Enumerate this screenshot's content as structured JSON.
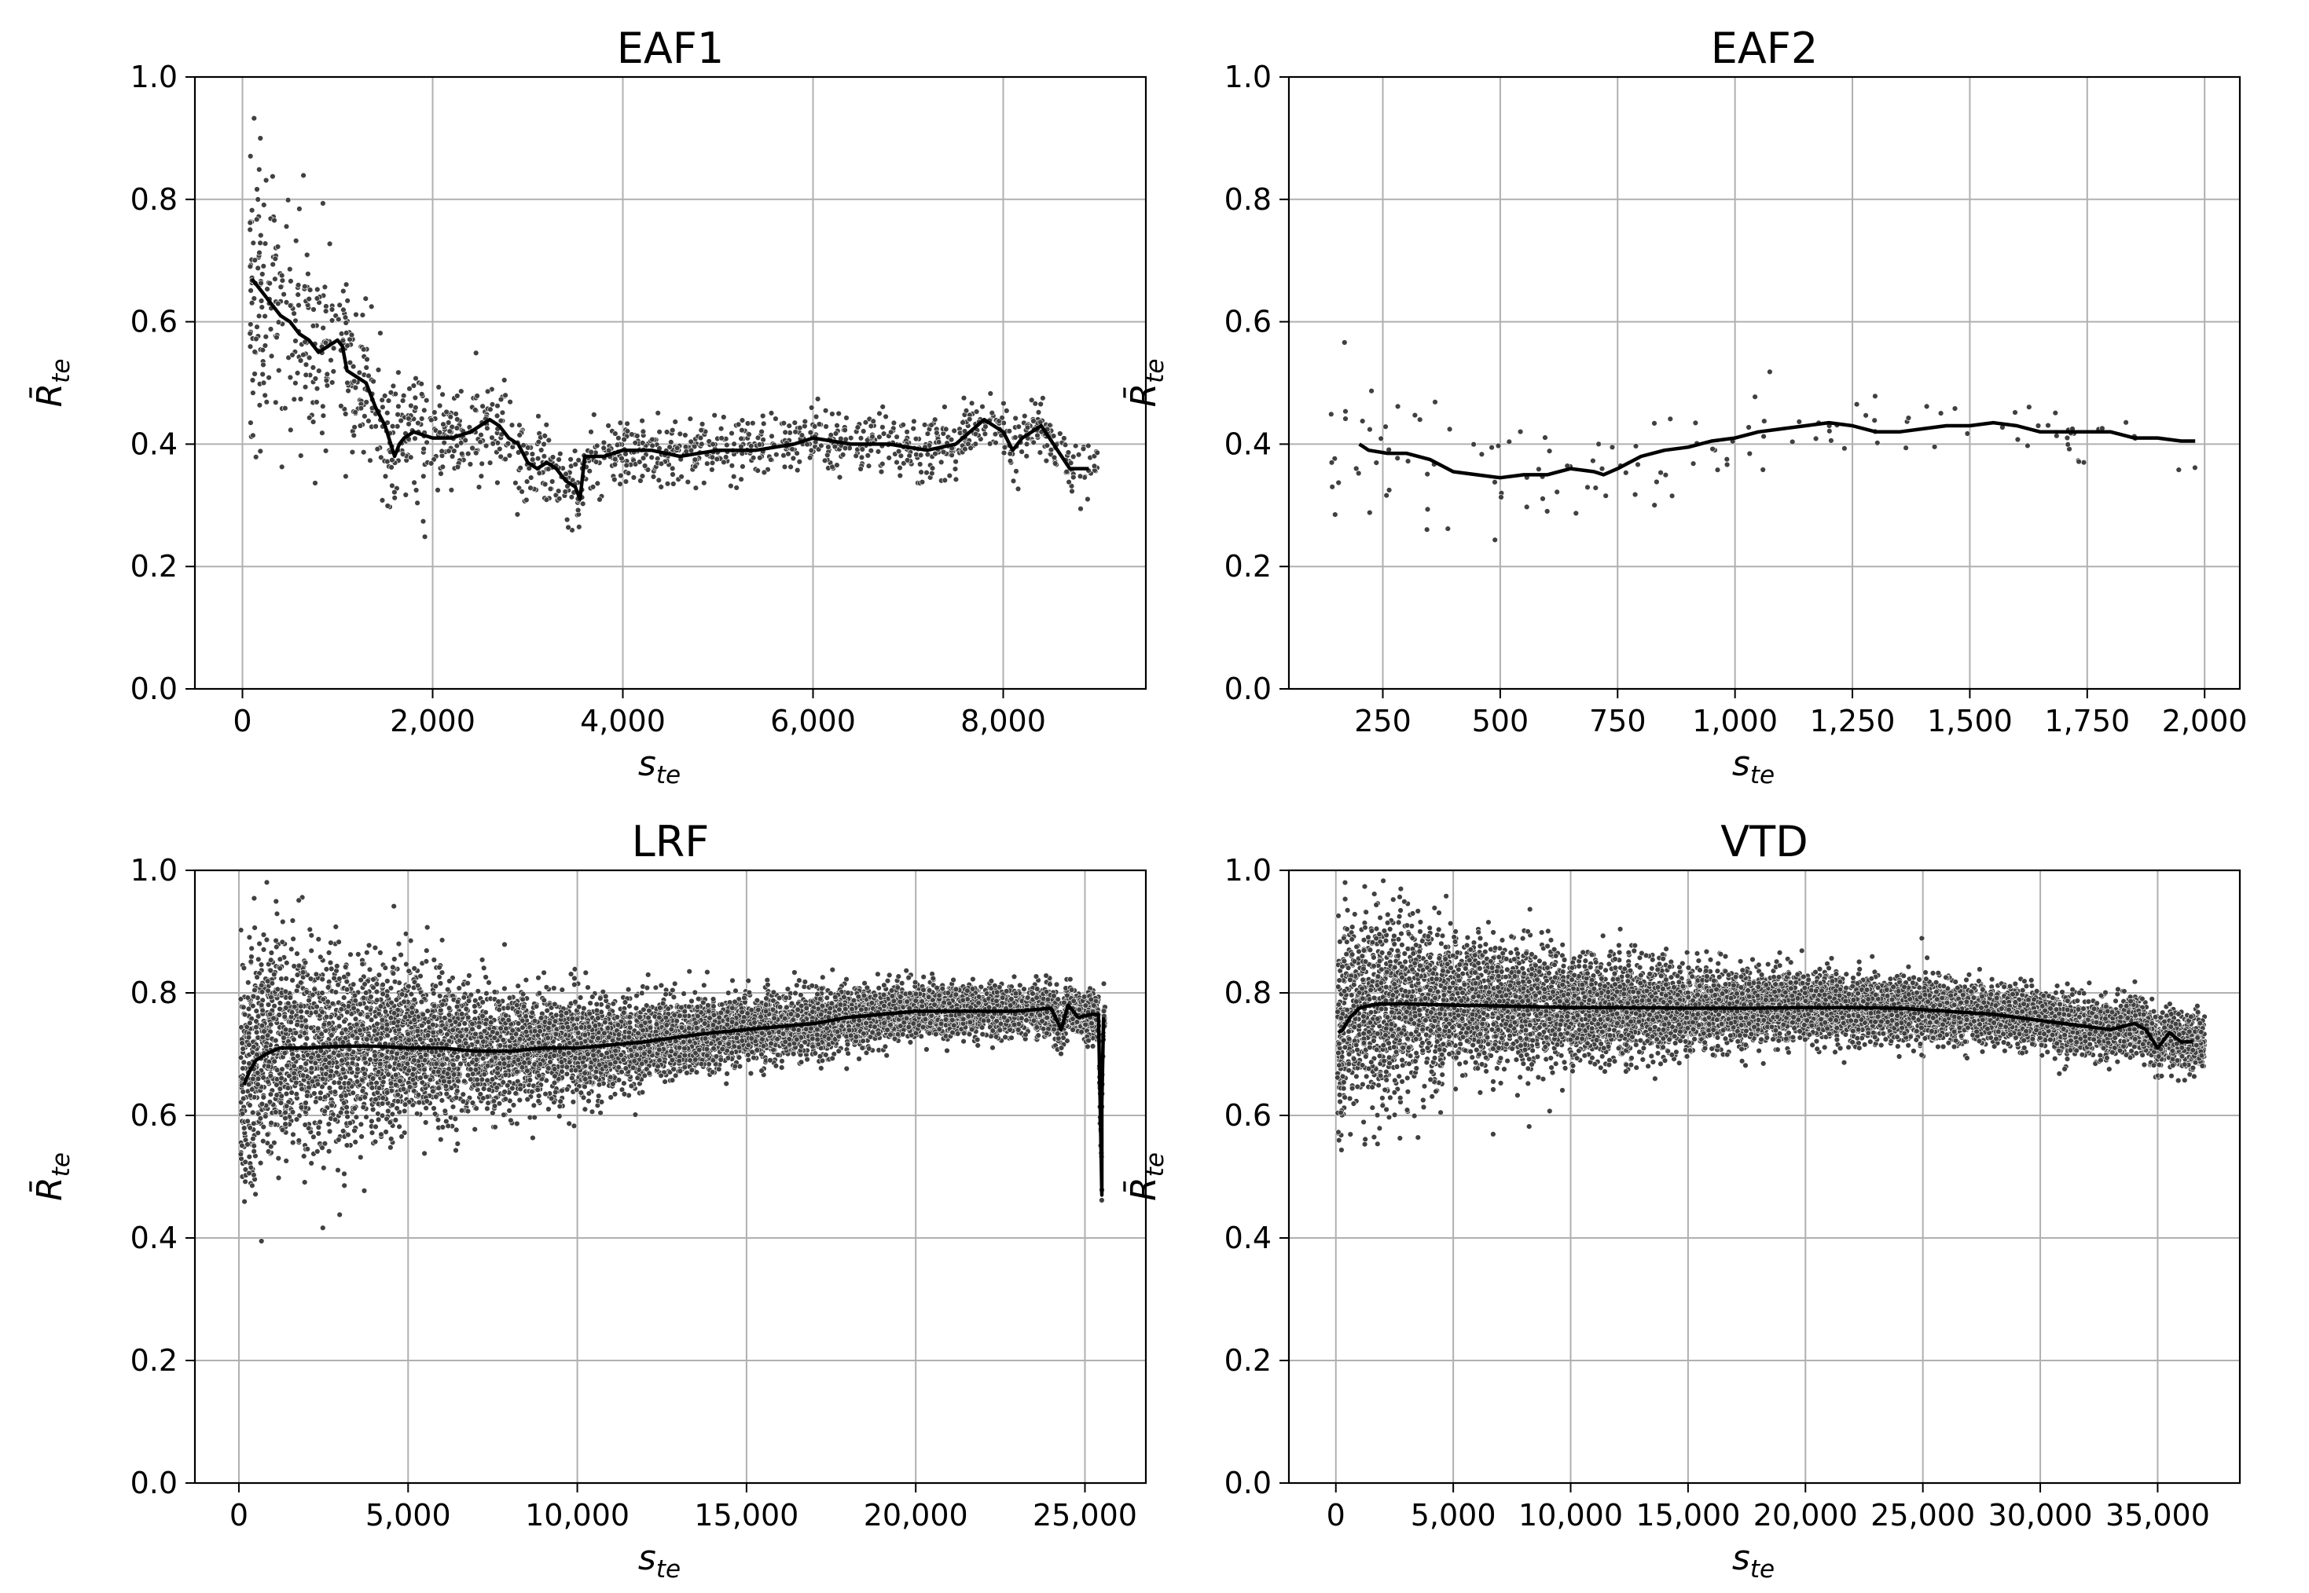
{
  "chart_data": [
    {
      "id": "eaf1",
      "type": "scatter",
      "title": "EAF1",
      "xlabel": {
        "main": "s",
        "sub": "te"
      },
      "ylabel": {
        "main": "R̄",
        "sub": "te"
      },
      "xlim": [
        -500,
        9500
      ],
      "ylim": [
        0.0,
        1.0
      ],
      "xticks": [
        0,
        2000,
        4000,
        6000,
        8000
      ],
      "xtick_labels": [
        "0",
        "2,000",
        "4,000",
        "6,000",
        "8,000"
      ],
      "yticks": [
        0.0,
        0.2,
        0.4,
        0.6,
        0.8,
        1.0
      ],
      "ytick_labels": [
        "0.0",
        "0.2",
        "0.4",
        "0.6",
        "0.8",
        "1.0"
      ],
      "grid": true,
      "line": {
        "name": "moving average",
        "x": [
          100,
          150,
          200,
          300,
          400,
          500,
          600,
          700,
          800,
          900,
          1000,
          1050,
          1100,
          1200,
          1300,
          1400,
          1500,
          1600,
          1650,
          1700,
          1800,
          2000,
          2200,
          2400,
          2600,
          2700,
          2800,
          2900,
          3000,
          3100,
          3200,
          3300,
          3400,
          3500,
          3550,
          3600,
          3800,
          4000,
          4300,
          4600,
          5000,
          5400,
          5800,
          6000,
          6400,
          6800,
          7200,
          7500,
          7800,
          8000,
          8100,
          8200,
          8400,
          8700,
          8900
        ],
        "y": [
          0.67,
          0.66,
          0.65,
          0.63,
          0.61,
          0.6,
          0.58,
          0.57,
          0.55,
          0.56,
          0.57,
          0.56,
          0.52,
          0.51,
          0.5,
          0.46,
          0.43,
          0.38,
          0.4,
          0.41,
          0.42,
          0.41,
          0.41,
          0.42,
          0.44,
          0.43,
          0.41,
          0.4,
          0.37,
          0.36,
          0.37,
          0.36,
          0.34,
          0.33,
          0.31,
          0.38,
          0.38,
          0.39,
          0.39,
          0.38,
          0.39,
          0.39,
          0.4,
          0.41,
          0.4,
          0.4,
          0.39,
          0.4,
          0.44,
          0.42,
          0.39,
          0.41,
          0.43,
          0.36,
          0.36
        ]
      },
      "scatter_model": {
        "description": "scattered observations around the moving average",
        "n": 1400,
        "x_min": 80,
        "x_max": 9000,
        "density_center": 1200,
        "density_scale": 2500,
        "spread_start": 0.13,
        "spread_end": 0.025,
        "spread_decay": 1200,
        "seed": 11
      }
    },
    {
      "id": "eaf2",
      "type": "scatter",
      "title": "EAF2",
      "xlabel": {
        "main": "s",
        "sub": "te"
      },
      "ylabel": {
        "main": "R̄",
        "sub": "te"
      },
      "xlim": [
        50,
        2075
      ],
      "ylim": [
        0.0,
        1.0
      ],
      "xticks": [
        250,
        500,
        750,
        1000,
        1250,
        1500,
        1750,
        2000
      ],
      "xtick_labels": [
        "250",
        "500",
        "750",
        "1,000",
        "1,250",
        "1,500",
        "1,750",
        "2,000"
      ],
      "yticks": [
        0.0,
        0.2,
        0.4,
        0.6,
        0.8,
        1.0
      ],
      "ytick_labels": [
        "0.0",
        "0.2",
        "0.4",
        "0.6",
        "0.8",
        "1.0"
      ],
      "grid": true,
      "line": {
        "name": "moving average",
        "x": [
          200,
          220,
          260,
          300,
          350,
          400,
          450,
          500,
          550,
          600,
          650,
          700,
          720,
          750,
          800,
          850,
          900,
          950,
          1000,
          1050,
          1100,
          1150,
          1200,
          1250,
          1300,
          1350,
          1400,
          1450,
          1500,
          1550,
          1600,
          1650,
          1700,
          1750,
          1800,
          1850,
          1900,
          1950,
          1980
        ],
        "y": [
          0.4,
          0.39,
          0.385,
          0.385,
          0.375,
          0.355,
          0.35,
          0.345,
          0.35,
          0.35,
          0.36,
          0.355,
          0.35,
          0.36,
          0.38,
          0.39,
          0.395,
          0.405,
          0.41,
          0.42,
          0.425,
          0.43,
          0.435,
          0.43,
          0.42,
          0.42,
          0.425,
          0.43,
          0.43,
          0.435,
          0.43,
          0.42,
          0.42,
          0.42,
          0.42,
          0.41,
          0.41,
          0.405,
          0.405
        ]
      },
      "scatter_model": {
        "description": "scattered observations around the moving average",
        "n": 140,
        "x_min": 140,
        "x_max": 1990,
        "density_center": 600,
        "density_scale": 900,
        "spread_start": 0.07,
        "spread_end": 0.02,
        "spread_decay": 600,
        "seed": 22
      }
    },
    {
      "id": "lrf",
      "type": "scatter",
      "title": "LRF",
      "xlabel": {
        "main": "s",
        "sub": "te"
      },
      "ylabel": {
        "main": "R̄",
        "sub": "te"
      },
      "xlim": [
        -1300,
        26800
      ],
      "ylim": [
        0.0,
        1.0
      ],
      "xticks": [
        0,
        5000,
        10000,
        15000,
        20000,
        25000
      ],
      "xtick_labels": [
        "0",
        "5,000",
        "10,000",
        "15,000",
        "20,000",
        "25,000"
      ],
      "yticks": [
        0.0,
        0.2,
        0.4,
        0.6,
        0.8,
        1.0
      ],
      "ytick_labels": [
        "0.0",
        "0.2",
        "0.4",
        "0.6",
        "0.8",
        "1.0"
      ],
      "grid": true,
      "line": {
        "name": "moving average",
        "x": [
          150,
          300,
          500,
          800,
          1200,
          2000,
          3000,
          4000,
          5000,
          6000,
          7000,
          8000,
          9000,
          10000,
          11000,
          12000,
          13000,
          14000,
          15000,
          16000,
          17000,
          18000,
          19000,
          20000,
          21000,
          22000,
          23000,
          24000,
          24300,
          24500,
          24800,
          25200,
          25400,
          25450,
          25500,
          25500,
          25550
        ],
        "y": [
          0.65,
          0.67,
          0.69,
          0.7,
          0.71,
          0.71,
          0.713,
          0.713,
          0.71,
          0.71,
          0.705,
          0.705,
          0.71,
          0.71,
          0.715,
          0.72,
          0.728,
          0.735,
          0.74,
          0.745,
          0.75,
          0.76,
          0.765,
          0.77,
          0.77,
          0.77,
          0.77,
          0.775,
          0.74,
          0.78,
          0.76,
          0.765,
          0.765,
          0.62,
          0.47,
          0.62,
          0.76
        ]
      },
      "scatter_model": {
        "description": "dense cloud of observations around the moving average",
        "n": 9000,
        "x_min": 50,
        "x_max": 25600,
        "density_center": 0,
        "density_scale": 9000,
        "spread_start": 0.1,
        "spread_end": 0.012,
        "spread_decay": 9000,
        "seed": 33
      }
    },
    {
      "id": "vtd",
      "type": "scatter",
      "title": "VTD",
      "xlabel": {
        "main": "s",
        "sub": "te"
      },
      "ylabel": {
        "main": "R̄",
        "sub": "te"
      },
      "xlim": [
        -2000,
        38500
      ],
      "ylim": [
        0.0,
        1.0
      ],
      "xticks": [
        0,
        5000,
        10000,
        15000,
        20000,
        25000,
        30000,
        35000
      ],
      "xtick_labels": [
        "0",
        "5,000",
        "10,000",
        "15,000",
        "20,000",
        "25,000",
        "30,000",
        "35,000"
      ],
      "yticks": [
        0.0,
        0.2,
        0.4,
        0.6,
        0.8,
        1.0
      ],
      "ytick_labels": [
        "0.0",
        "0.2",
        "0.4",
        "0.6",
        "0.8",
        "1.0"
      ],
      "grid": true,
      "line": {
        "name": "moving average",
        "x": [
          100,
          300,
          600,
          1000,
          1500,
          2000,
          3000,
          5000,
          8000,
          10000,
          12000,
          15000,
          18000,
          20000,
          22000,
          24000,
          26000,
          28000,
          29000,
          30000,
          31000,
          32000,
          33000,
          34000,
          34500,
          35000,
          35500,
          36000,
          36500
        ],
        "y": [
          0.735,
          0.74,
          0.76,
          0.775,
          0.78,
          0.782,
          0.782,
          0.78,
          0.778,
          0.776,
          0.776,
          0.775,
          0.775,
          0.776,
          0.776,
          0.775,
          0.77,
          0.765,
          0.76,
          0.755,
          0.75,
          0.745,
          0.74,
          0.75,
          0.74,
          0.71,
          0.735,
          0.72,
          0.72
        ]
      },
      "scatter_model": {
        "description": "dense cloud of observations around the moving average",
        "n": 10000,
        "x_min": 50,
        "x_max": 37000,
        "density_center": 0,
        "density_scale": 12000,
        "spread_start": 0.09,
        "spread_end": 0.02,
        "spread_decay": 9000,
        "seed": 44
      }
    }
  ]
}
